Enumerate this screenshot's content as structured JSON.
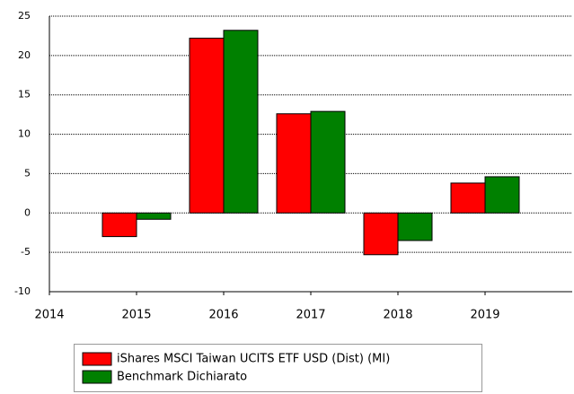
{
  "chart_data": {
    "type": "bar",
    "categories": [
      "2014",
      "2015",
      "2016",
      "2017",
      "2018",
      "2019"
    ],
    "series": [
      {
        "name": "iShares MSCI Taiwan UCITS ETF USD (Dist) (MI)",
        "color": "#ff0000",
        "values": [
          null,
          -3.0,
          22.2,
          12.6,
          -5.3,
          3.8
        ]
      },
      {
        "name": "Benchmark Dichiarato",
        "color": "#008000",
        "values": [
          null,
          -0.8,
          23.2,
          12.9,
          -3.5,
          4.6
        ]
      }
    ],
    "ylim": [
      -10,
      25
    ],
    "yticks": [
      -10,
      -5,
      0,
      5,
      10,
      15,
      20,
      25
    ],
    "grid": true,
    "legend": "bottom"
  }
}
